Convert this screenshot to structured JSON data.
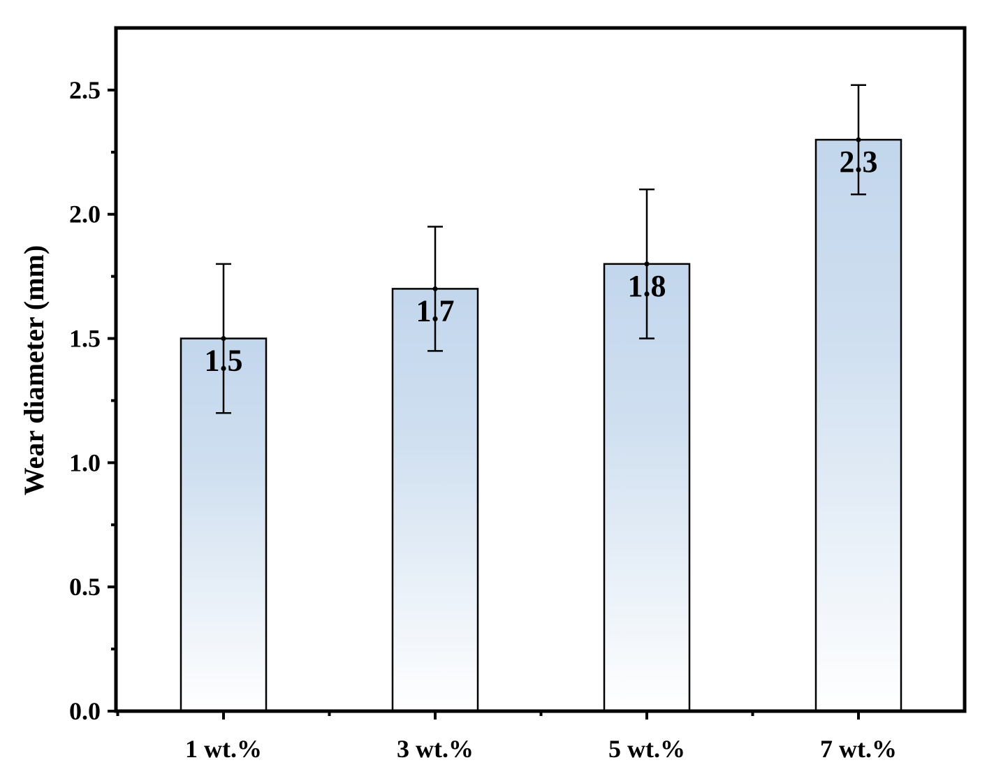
{
  "chart_data": {
    "type": "bar",
    "categories": [
      "1 wt.%",
      "3 wt.%",
      "5 wt.%",
      "7 wt.%"
    ],
    "values": [
      1.5,
      1.7,
      1.8,
      2.3
    ],
    "error_low": [
      1.2,
      1.45,
      1.5,
      2.08
    ],
    "error_high": [
      1.8,
      1.95,
      2.1,
      2.52
    ],
    "data_labels": [
      "1.5",
      "1.7",
      "1.8",
      "2.3"
    ],
    "title": "",
    "xlabel": "",
    "ylabel": "Wear diameter (mm)",
    "ylim": [
      0,
      2.75
    ],
    "yticks": [
      0.0,
      0.5,
      1.0,
      1.5,
      2.0,
      2.5
    ],
    "ytick_labels": [
      "0.0",
      "0.5",
      "1.0",
      "1.5",
      "2.0",
      "2.5"
    ],
    "grid": false,
    "legend": "none",
    "colors": {
      "bar_top": "#c2d6ec",
      "bar_bottom": "#ffffff",
      "axis": "#000000"
    }
  }
}
